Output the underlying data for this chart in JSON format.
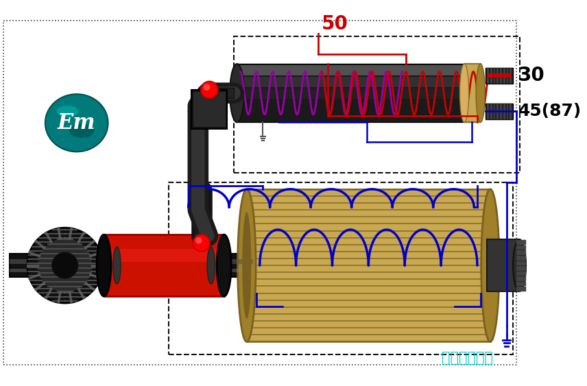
{
  "bg_color": "#ffffff",
  "watermark": "彩虹网址导航",
  "watermark_color": "#00CED1",
  "label_50": "50",
  "label_30": "30",
  "label_45": "45(87)",
  "label_50_color": "#cc0000",
  "coil_relay_purple": "#8B008B",
  "coil_relay_red": "#cc0000",
  "coil_relay_blue": "#0000cc",
  "coil_motor_color": "#0000cc",
  "wire_color": "#0000cc",
  "dashed_box_color": "#111111",
  "motor_body_color": "#c8a850",
  "motor_stripe_color": "#8B7330"
}
